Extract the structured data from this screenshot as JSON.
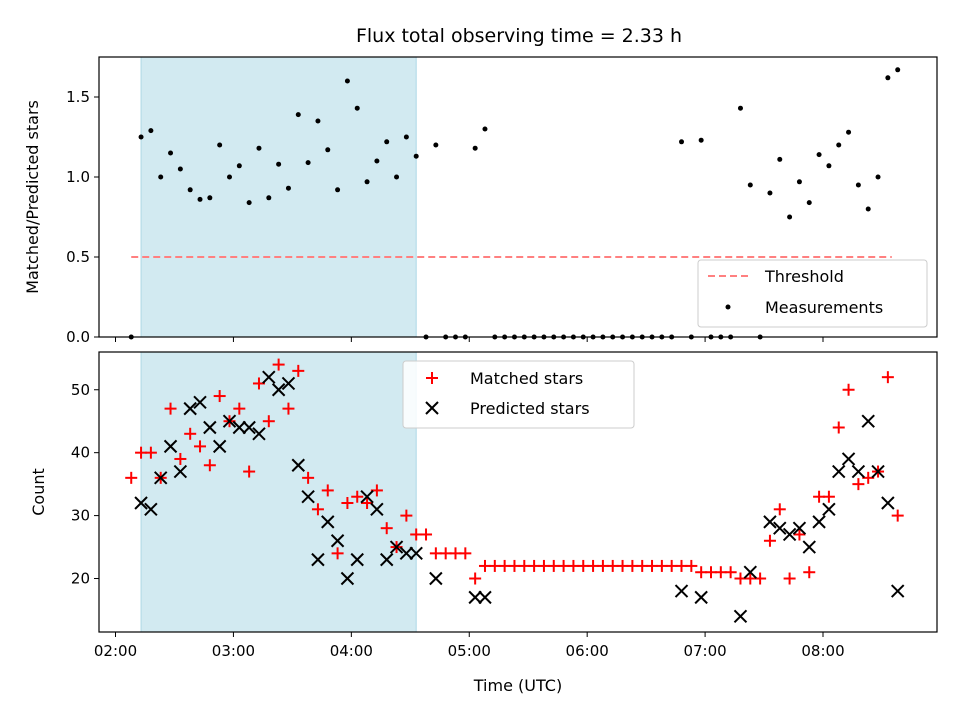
{
  "chart_data": [
    {
      "type": "scatter",
      "title": "Flux total observing time = 2.33 h",
      "xlabel": "",
      "ylabel": "Matched/Predicted stars",
      "xlim": [
        "02:00",
        "09:00"
      ],
      "ylim": [
        0,
        1.75
      ],
      "yticks": [
        0.0,
        0.5,
        1.0,
        1.5
      ],
      "ytick_labels": [
        "0.0",
        "0.5",
        "1.0",
        "1.5"
      ],
      "legend_position": "lower-right",
      "shaded_span": [
        "02:13",
        "04:33"
      ],
      "shade_color": "#add8e6",
      "threshold": {
        "name": "Threshold",
        "value": 0.5,
        "x_range": [
          "02:08",
          "08:35"
        ],
        "color": "#ff8080"
      },
      "series": [
        {
          "name": "Measurements",
          "color": "#000000",
          "points": [
            [
              "02:08",
              0.0
            ],
            [
              "02:13",
              1.25
            ],
            [
              "02:18",
              1.29
            ],
            [
              "02:23",
              1.0
            ],
            [
              "02:28",
              1.15
            ],
            [
              "02:33",
              1.05
            ],
            [
              "02:38",
              0.92
            ],
            [
              "02:43",
              0.86
            ],
            [
              "02:48",
              0.87
            ],
            [
              "02:53",
              1.2
            ],
            [
              "02:58",
              1.0
            ],
            [
              "03:03",
              1.07
            ],
            [
              "03:08",
              0.84
            ],
            [
              "03:13",
              1.18
            ],
            [
              "03:18",
              0.87
            ],
            [
              "03:23",
              1.08
            ],
            [
              "03:28",
              0.93
            ],
            [
              "03:33",
              1.39
            ],
            [
              "03:38",
              1.09
            ],
            [
              "03:43",
              1.35
            ],
            [
              "03:48",
              1.17
            ],
            [
              "03:53",
              0.92
            ],
            [
              "03:58",
              1.6
            ],
            [
              "04:03",
              1.43
            ],
            [
              "04:08",
              0.97
            ],
            [
              "04:13",
              1.1
            ],
            [
              "04:18",
              1.22
            ],
            [
              "04:23",
              1.0
            ],
            [
              "04:28",
              1.25
            ],
            [
              "04:33",
              1.13
            ],
            [
              "04:38",
              0.0
            ],
            [
              "04:43",
              1.2
            ],
            [
              "04:48",
              0.0
            ],
            [
              "04:53",
              0.0
            ],
            [
              "04:58",
              0.0
            ],
            [
              "05:03",
              1.18
            ],
            [
              "05:08",
              1.3
            ],
            [
              "05:13",
              0.0
            ],
            [
              "05:18",
              0.0
            ],
            [
              "05:23",
              0.0
            ],
            [
              "05:28",
              0.0
            ],
            [
              "05:33",
              0.0
            ],
            [
              "05:38",
              0.0
            ],
            [
              "05:43",
              0.0
            ],
            [
              "05:48",
              0.0
            ],
            [
              "05:53",
              0.0
            ],
            [
              "05:58",
              0.0
            ],
            [
              "06:03",
              0.0
            ],
            [
              "06:08",
              0.0
            ],
            [
              "06:13",
              0.0
            ],
            [
              "06:18",
              0.0
            ],
            [
              "06:23",
              0.0
            ],
            [
              "06:28",
              0.0
            ],
            [
              "06:33",
              0.0
            ],
            [
              "06:38",
              0.0
            ],
            [
              "06:43",
              0.0
            ],
            [
              "06:48",
              1.22
            ],
            [
              "06:53",
              0.0
            ],
            [
              "06:58",
              1.23
            ],
            [
              "07:03",
              0.0
            ],
            [
              "07:08",
              0.0
            ],
            [
              "07:13",
              0.0
            ],
            [
              "07:18",
              1.43
            ],
            [
              "07:23",
              0.95
            ],
            [
              "07:28",
              0.0
            ],
            [
              "07:33",
              0.9
            ],
            [
              "07:38",
              1.11
            ],
            [
              "07:43",
              0.75
            ],
            [
              "07:48",
              0.97
            ],
            [
              "07:53",
              0.84
            ],
            [
              "07:58",
              1.14
            ],
            [
              "08:03",
              1.07
            ],
            [
              "08:08",
              1.2
            ],
            [
              "08:13",
              1.28
            ],
            [
              "08:18",
              0.95
            ],
            [
              "08:23",
              0.8
            ],
            [
              "08:28",
              1.0
            ],
            [
              "08:33",
              1.62
            ],
            [
              "08:38",
              1.67
            ]
          ]
        }
      ]
    },
    {
      "type": "scatter",
      "title": "",
      "xlabel": "Time (UTC)",
      "ylabel": "Count",
      "xlim": [
        "02:00",
        "09:00"
      ],
      "xticks": [
        "02:00",
        "03:00",
        "04:00",
        "05:00",
        "06:00",
        "07:00",
        "08:00"
      ],
      "ylim": [
        11.5,
        56
      ],
      "yticks": [
        20,
        30,
        40,
        50
      ],
      "legend_position": "upper-center",
      "shaded_span": [
        "02:13",
        "04:33"
      ],
      "shade_color": "#add8e6",
      "series": [
        {
          "name": "Matched stars",
          "color": "#ff0000",
          "marker": "plus",
          "points": [
            [
              "02:08",
              36
            ],
            [
              "02:13",
              40
            ],
            [
              "02:18",
              40
            ],
            [
              "02:23",
              36
            ],
            [
              "02:28",
              47
            ],
            [
              "02:33",
              39
            ],
            [
              "02:38",
              43
            ],
            [
              "02:43",
              41
            ],
            [
              "02:48",
              38
            ],
            [
              "02:53",
              49
            ],
            [
              "02:58",
              45
            ],
            [
              "03:03",
              47
            ],
            [
              "03:08",
              37
            ],
            [
              "03:13",
              51
            ],
            [
              "03:18",
              45
            ],
            [
              "03:23",
              54
            ],
            [
              "03:28",
              47
            ],
            [
              "03:33",
              53
            ],
            [
              "03:38",
              36
            ],
            [
              "03:43",
              31
            ],
            [
              "03:48",
              34
            ],
            [
              "03:53",
              24
            ],
            [
              "03:58",
              32
            ],
            [
              "04:03",
              33
            ],
            [
              "04:08",
              32
            ],
            [
              "04:13",
              34
            ],
            [
              "04:18",
              28
            ],
            [
              "04:23",
              25
            ],
            [
              "04:28",
              30
            ],
            [
              "04:33",
              27
            ],
            [
              "04:38",
              27
            ],
            [
              "04:43",
              24
            ],
            [
              "04:48",
              24
            ],
            [
              "04:53",
              24
            ],
            [
              "04:58",
              24
            ],
            [
              "05:03",
              20
            ],
            [
              "05:08",
              22
            ],
            [
              "05:13",
              22
            ],
            [
              "05:18",
              22
            ],
            [
              "05:23",
              22
            ],
            [
              "05:28",
              22
            ],
            [
              "05:33",
              22
            ],
            [
              "05:38",
              22
            ],
            [
              "05:43",
              22
            ],
            [
              "05:48",
              22
            ],
            [
              "05:53",
              22
            ],
            [
              "05:58",
              22
            ],
            [
              "06:03",
              22
            ],
            [
              "06:08",
              22
            ],
            [
              "06:13",
              22
            ],
            [
              "06:18",
              22
            ],
            [
              "06:23",
              22
            ],
            [
              "06:28",
              22
            ],
            [
              "06:33",
              22
            ],
            [
              "06:38",
              22
            ],
            [
              "06:43",
              22
            ],
            [
              "06:48",
              22
            ],
            [
              "06:53",
              22
            ],
            [
              "06:58",
              21
            ],
            [
              "07:03",
              21
            ],
            [
              "07:08",
              21
            ],
            [
              "07:13",
              21
            ],
            [
              "07:18",
              20
            ],
            [
              "07:23",
              20
            ],
            [
              "07:28",
              20
            ],
            [
              "07:33",
              26
            ],
            [
              "07:38",
              31
            ],
            [
              "07:43",
              20
            ],
            [
              "07:48",
              27
            ],
            [
              "07:53",
              21
            ],
            [
              "07:58",
              33
            ],
            [
              "08:03",
              33
            ],
            [
              "08:08",
              44
            ],
            [
              "08:13",
              50
            ],
            [
              "08:18",
              35
            ],
            [
              "08:23",
              36
            ],
            [
              "08:28",
              37
            ],
            [
              "08:33",
              52
            ],
            [
              "08:38",
              30
            ]
          ]
        },
        {
          "name": "Predicted stars",
          "color": "#000000",
          "marker": "x",
          "points": [
            [
              "02:13",
              32
            ],
            [
              "02:18",
              31
            ],
            [
              "02:23",
              36
            ],
            [
              "02:28",
              41
            ],
            [
              "02:33",
              37
            ],
            [
              "02:38",
              47
            ],
            [
              "02:43",
              48
            ],
            [
              "02:48",
              44
            ],
            [
              "02:53",
              41
            ],
            [
              "02:58",
              45
            ],
            [
              "03:03",
              44
            ],
            [
              "03:08",
              44
            ],
            [
              "03:13",
              43
            ],
            [
              "03:18",
              52
            ],
            [
              "03:23",
              50
            ],
            [
              "03:28",
              51
            ],
            [
              "03:33",
              38
            ],
            [
              "03:38",
              33
            ],
            [
              "03:43",
              23
            ],
            [
              "03:48",
              29
            ],
            [
              "03:53",
              26
            ],
            [
              "03:58",
              20
            ],
            [
              "04:03",
              23
            ],
            [
              "04:08",
              33
            ],
            [
              "04:13",
              31
            ],
            [
              "04:18",
              23
            ],
            [
              "04:23",
              25
            ],
            [
              "04:28",
              24
            ],
            [
              "04:33",
              24
            ],
            [
              "04:43",
              20
            ],
            [
              "05:03",
              17
            ],
            [
              "05:08",
              17
            ],
            [
              "06:48",
              18
            ],
            [
              "06:58",
              17
            ],
            [
              "07:18",
              14
            ],
            [
              "07:23",
              21
            ],
            [
              "07:33",
              29
            ],
            [
              "07:38",
              28
            ],
            [
              "07:43",
              27
            ],
            [
              "07:48",
              28
            ],
            [
              "07:53",
              25
            ],
            [
              "07:58",
              29
            ],
            [
              "08:03",
              31
            ],
            [
              "08:08",
              37
            ],
            [
              "08:13",
              39
            ],
            [
              "08:18",
              37
            ],
            [
              "08:23",
              45
            ],
            [
              "08:28",
              37
            ],
            [
              "08:33",
              32
            ],
            [
              "08:38",
              18
            ]
          ]
        }
      ]
    }
  ]
}
